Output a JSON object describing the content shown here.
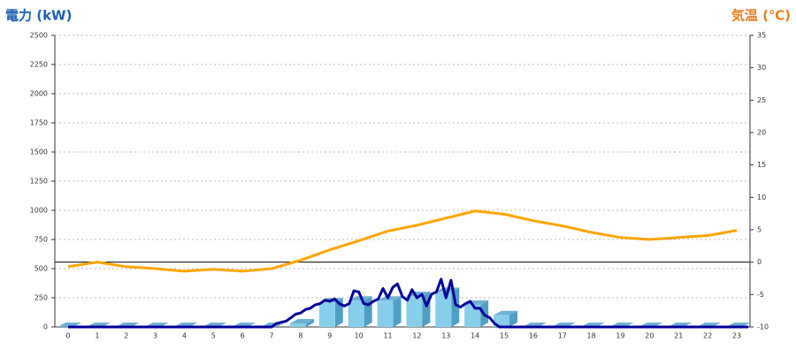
{
  "chart_data": {
    "type": "bar",
    "y_label": "電力 (kW)",
    "y2_label": "気温 (℃)",
    "categories": [
      "0",
      "1",
      "2",
      "3",
      "4",
      "5",
      "6",
      "7",
      "8",
      "9",
      "10",
      "11",
      "12",
      "13",
      "14",
      "15",
      "16",
      "17",
      "18",
      "19",
      "20",
      "21",
      "22",
      "23"
    ],
    "series": [
      {
        "type": "bar",
        "color": "#87ceeb",
        "values": [
          0,
          0,
          0,
          0,
          0,
          0,
          0,
          0,
          30,
          210,
          225,
          225,
          265,
          300,
          190,
          100,
          0,
          0,
          0,
          0,
          0,
          0,
          0,
          0
        ]
      },
      {
        "type": "line",
        "color": "#000099",
        "x": [
          0,
          7,
          7.17,
          7.33,
          7.5,
          7.67,
          7.83,
          8,
          8.17,
          8.33,
          8.5,
          8.67,
          8.83,
          9,
          9.17,
          9.33,
          9.5,
          9.67,
          9.83,
          10,
          10.17,
          10.33,
          10.5,
          10.67,
          10.83,
          11,
          11.17,
          11.33,
          11.5,
          11.67,
          11.83,
          12,
          12.17,
          12.33,
          12.5,
          12.67,
          12.83,
          13,
          13.17,
          13.33,
          13.5,
          13.67,
          13.83,
          14,
          14.17,
          14.33,
          14.5,
          14.67,
          14.83,
          15,
          23.4
        ],
        "values": [
          0,
          0,
          30,
          40,
          50,
          80,
          110,
          120,
          150,
          160,
          190,
          200,
          230,
          220,
          240,
          200,
          180,
          200,
          310,
          300,
          200,
          190,
          220,
          240,
          330,
          250,
          340,
          370,
          260,
          230,
          320,
          250,
          280,
          180,
          280,
          300,
          410,
          250,
          400,
          190,
          170,
          200,
          220,
          160,
          160,
          100,
          80,
          30,
          0,
          0,
          0
        ]
      },
      {
        "type": "line",
        "color": "#ffa500",
        "axis": "y2",
        "values": [
          -0.7,
          0,
          -0.7,
          -1,
          -1.4,
          -1.1,
          -1.4,
          -1,
          0.3,
          1.9,
          3.3,
          4.8,
          5.7,
          6.8,
          7.9,
          7.4,
          6.4,
          5.6,
          4.6,
          3.8,
          3.5,
          3.8,
          4.1,
          4.9
        ]
      }
    ],
    "ylim": [
      0,
      2500
    ],
    "yticks": [
      0,
      250,
      500,
      750,
      1000,
      1250,
      1500,
      1750,
      2000,
      2250,
      2500
    ],
    "y2lim": [
      -10,
      35
    ],
    "y2ticks": [
      -10,
      -5,
      0,
      5,
      10,
      15,
      20,
      25,
      30,
      35
    ],
    "grid": true
  }
}
